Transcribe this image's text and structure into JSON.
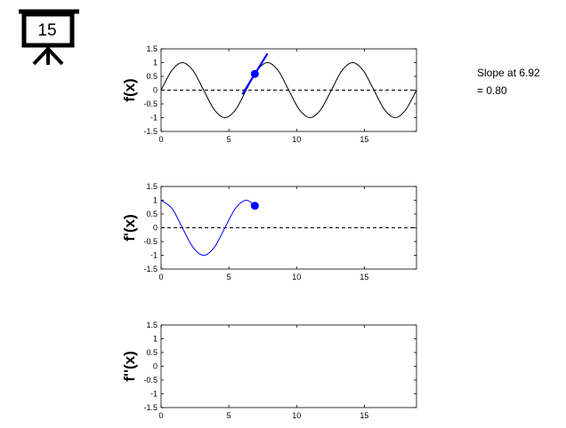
{
  "badge": "15",
  "chart_data": [
    {
      "type": "line",
      "ylabel": "f(x)",
      "xlim": [
        0,
        18.85
      ],
      "ylim": [
        -1.5,
        1.5
      ],
      "xticks": [
        0,
        5,
        10,
        15
      ],
      "yticks": [
        -1.5,
        -1,
        -0.5,
        0,
        0.5,
        1,
        1.5
      ],
      "hline": 0,
      "annotation": [
        "Slope at 6.92",
        "= 0.80"
      ],
      "series": [
        {
          "color": "#000000",
          "style": "thin",
          "x": [
            0,
            0.79,
            1.57,
            2.36,
            3.14,
            3.93,
            4.71,
            5.5,
            6.28,
            7.07,
            7.85,
            8.64,
            9.42,
            10.21,
            11.0,
            11.78,
            12.57,
            13.35,
            14.14,
            14.92,
            15.71,
            16.49,
            17.28,
            18.06,
            18.85
          ],
          "values": [
            0,
            0.71,
            1,
            0.71,
            0,
            -0.71,
            -1,
            -0.71,
            0,
            0.71,
            1,
            0.71,
            0,
            -0.71,
            -1,
            -0.71,
            0,
            0.71,
            1,
            0.71,
            0,
            -0.71,
            -1,
            -0.71,
            0
          ]
        },
        {
          "color": "#0000ff",
          "style": "bold",
          "x": [
            6.0,
            7.85
          ],
          "values": [
            -0.15,
            1.33
          ]
        },
        {
          "color": "#0000ff",
          "style": "marker",
          "x": [
            6.92
          ],
          "values": [
            0.59
          ]
        }
      ]
    },
    {
      "type": "line",
      "ylabel": "f'(x)",
      "xlim": [
        0,
        18.85
      ],
      "ylim": [
        -1.5,
        1.5
      ],
      "xticks": [
        0,
        5,
        10,
        15
      ],
      "yticks": [
        -1.5,
        -1,
        -0.5,
        0,
        0.5,
        1,
        1.5
      ],
      "hline": 0,
      "series": [
        {
          "color": "#0000ff",
          "style": "thin",
          "x": [
            0,
            0.79,
            1.57,
            2.36,
            3.14,
            3.93,
            4.71,
            5.5,
            6.28,
            6.92
          ],
          "values": [
            1,
            0.71,
            0,
            -0.71,
            -1,
            -0.71,
            0,
            0.71,
            1,
            0.8
          ]
        },
        {
          "color": "#0000ff",
          "style": "marker",
          "x": [
            6.92
          ],
          "values": [
            0.8
          ]
        }
      ]
    },
    {
      "type": "line",
      "ylabel": "f''(x)",
      "xlim": [
        0,
        18.85
      ],
      "ylim": [
        -1.5,
        1.5
      ],
      "xticks": [
        0,
        5,
        10,
        15
      ],
      "yticks": [
        -1.5,
        -1,
        -0.5,
        0,
        0.5,
        1,
        1.5
      ],
      "series": []
    }
  ]
}
